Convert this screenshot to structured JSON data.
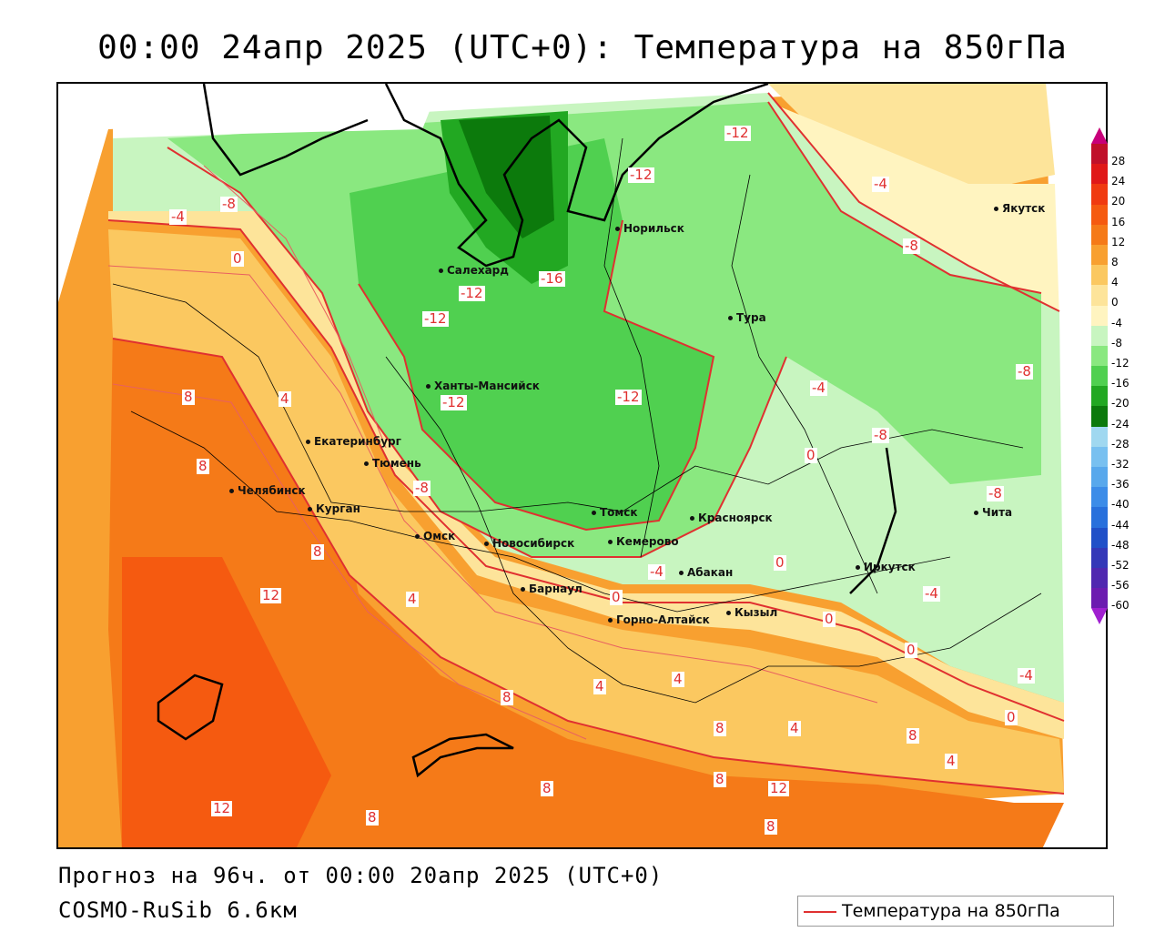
{
  "title": "00:00 24апр 2025 (UTC+0): Температура на 850гПа",
  "footer": {
    "forecast": "Прогноз на 96ч. от 00:00 20апр 2025 (UTC+0)",
    "model": "COSMO-RuSib 6.6км"
  },
  "legend": {
    "label": "Температура на 850гПа",
    "line_color": "#e03030"
  },
  "colorbar": {
    "labels": [
      "28",
      "24",
      "20",
      "16",
      "12",
      "8",
      "4",
      "0",
      "-4",
      "-8",
      "-12",
      "-16",
      "-20",
      "-24",
      "-28",
      "-32",
      "-36",
      "-40",
      "-44",
      "-48",
      "-52",
      "-56",
      "-60"
    ],
    "colors": [
      "#c0102a",
      "#e01818",
      "#f03a10",
      "#f55a10",
      "#f57a18",
      "#f8a030",
      "#fbc860",
      "#fde49a",
      "#fff4c0",
      "#c8f5c0",
      "#8ae880",
      "#50d050",
      "#22a822",
      "#0c7a0c",
      "#a0d8f0",
      "#78c0f0",
      "#58a8ec",
      "#3c8ce8",
      "#2870dc",
      "#2050c8",
      "#3438b8",
      "#5028b0",
      "#6c1cb0"
    ]
  },
  "cities": [
    {
      "name": "Норильск"
    },
    {
      "name": "Салехард"
    },
    {
      "name": "Тура"
    },
    {
      "name": "Якутск"
    },
    {
      "name": "Ханты-Мансийск"
    },
    {
      "name": "Екатеринбург"
    },
    {
      "name": "Тюмень"
    },
    {
      "name": "Челябинск"
    },
    {
      "name": "Курган"
    },
    {
      "name": "Омск"
    },
    {
      "name": "Новосибирск"
    },
    {
      "name": "Томск"
    },
    {
      "name": "Кемерово"
    },
    {
      "name": "Красноярск"
    },
    {
      "name": "Барнаул"
    },
    {
      "name": "Абакан"
    },
    {
      "name": "Горно-Алтайск"
    },
    {
      "name": "Кызыл"
    },
    {
      "name": "Иркутск"
    },
    {
      "name": "Чита"
    }
  ],
  "contour_labels": [
    "-12",
    "-8",
    "-4",
    "0",
    "-12",
    "-12",
    "-16",
    "-12",
    "-12",
    "-12",
    "-4",
    "-8",
    "-8",
    "-4",
    "-8",
    "-8",
    "-8",
    "-4",
    "0",
    "8",
    "4",
    "8",
    "8",
    "12",
    "4",
    "8",
    "0",
    "-4",
    "0",
    "0",
    "4",
    "4",
    "8",
    "4",
    "8",
    "8",
    "12",
    "8",
    "0",
    "4",
    "-4",
    "0",
    "12",
    "8",
    "8"
  ],
  "color_scheme": {
    "cold_dark": "#0c7a0c",
    "cold_mid": "#22a822",
    "cold": "#50d050",
    "cool": "#8ae880",
    "mild": "#c8f5c0",
    "neutral": "#fff4c0",
    "warm": "#fde49a",
    "warmer": "#fbc860",
    "hot": "#f8a030",
    "hotter": "#f57a18",
    "hottest": "#f55a10",
    "contour": "#e03030"
  }
}
